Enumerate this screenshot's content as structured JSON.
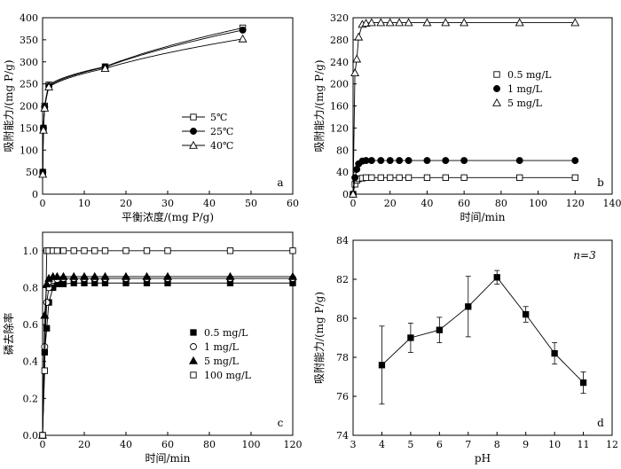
{
  "chart_data": [
    {
      "type": "scatter",
      "panel_label": "a",
      "xlabel": "平衡浓度/(mg P/g)",
      "ylabel": "吸附能力/(mg P/g)",
      "xlim": [
        0,
        60
      ],
      "ylim": [
        0,
        400
      ],
      "xticks": [
        0,
        10,
        20,
        30,
        40,
        50,
        60
      ],
      "yticks": [
        0,
        50,
        100,
        150,
        200,
        250,
        300,
        350,
        400
      ],
      "legend_position": "center-right",
      "fit_lines": true,
      "series": [
        {
          "name": "5℃",
          "marker": "open-square",
          "x": [
            0.05,
            0.2,
            0.5,
            1.5,
            15,
            48
          ],
          "y": [
            50,
            150,
            200,
            248,
            289,
            377
          ]
        },
        {
          "name": "25℃",
          "marker": "filled-circle",
          "x": [
            0.05,
            0.2,
            0.5,
            1.5,
            15,
            48
          ],
          "y": [
            50,
            150,
            198,
            245,
            288,
            372
          ]
        },
        {
          "name": "40℃",
          "marker": "open-triangle",
          "x": [
            0.05,
            0.2,
            0.5,
            1.5,
            15,
            48
          ],
          "y": [
            45,
            145,
            195,
            243,
            285,
            352
          ]
        }
      ]
    },
    {
      "type": "scatter",
      "panel_label": "b",
      "xlabel": "时间/min",
      "ylabel": "吸附能力/(mg P/g)",
      "xlim": [
        0,
        140
      ],
      "ylim": [
        0,
        320
      ],
      "xticks": [
        0,
        20,
        40,
        60,
        80,
        100,
        120,
        140
      ],
      "yticks": [
        0,
        40,
        80,
        120,
        160,
        200,
        240,
        280,
        320
      ],
      "legend_position": "center-right",
      "fit_lines": true,
      "series": [
        {
          "name": "0.5 mg/L",
          "marker": "open-square",
          "x": [
            0,
            1,
            2,
            3,
            5,
            7,
            10,
            15,
            20,
            25,
            30,
            40,
            50,
            60,
            90,
            120
          ],
          "y": [
            0,
            18,
            25,
            28,
            29,
            30,
            30,
            30,
            30,
            30,
            30,
            30,
            30,
            30,
            30,
            30
          ]
        },
        {
          "name": "1 mg/L",
          "marker": "filled-circle",
          "x": [
            0,
            1,
            2,
            3,
            5,
            7,
            10,
            15,
            20,
            25,
            30,
            40,
            50,
            60,
            90,
            120
          ],
          "y": [
            0,
            30,
            45,
            55,
            60,
            61,
            61,
            61,
            61,
            61,
            61,
            61,
            61,
            61,
            61,
            61
          ]
        },
        {
          "name": "5 mg/L",
          "marker": "open-triangle",
          "x": [
            0,
            1,
            2,
            3,
            5,
            7,
            10,
            15,
            20,
            25,
            30,
            40,
            50,
            60,
            90,
            120
          ],
          "y": [
            0,
            220,
            245,
            285,
            308,
            310,
            311,
            311,
            311,
            311,
            311,
            311,
            311,
            311,
            311,
            311
          ]
        }
      ]
    },
    {
      "type": "scatter",
      "panel_label": "c",
      "xlabel": "时间/min",
      "ylabel": "磷去除率",
      "xlim": [
        0,
        120
      ],
      "ylim": [
        0,
        1.1
      ],
      "xticks": [
        0,
        20,
        40,
        60,
        80,
        100,
        120
      ],
      "yticks": [
        0.0,
        0.2,
        0.4,
        0.6,
        0.8,
        1.0
      ],
      "ytick_labels": [
        "0.0",
        "0.2",
        "0.4",
        "0.6",
        "0.8",
        "1.0"
      ],
      "legend_position": "center-right",
      "fit_lines": true,
      "series": [
        {
          "name": "0.5 mg/L",
          "marker": "filled-square",
          "x": [
            0,
            1,
            2,
            3,
            5,
            7,
            10,
            15,
            20,
            25,
            30,
            40,
            50,
            60,
            90,
            120
          ],
          "y": [
            0,
            0.45,
            0.58,
            0.72,
            0.8,
            0.82,
            0.82,
            0.825,
            0.825,
            0.825,
            0.825,
            0.825,
            0.825,
            0.825,
            0.825,
            0.825
          ]
        },
        {
          "name": "1 mg/L",
          "marker": "open-circle",
          "x": [
            0,
            1,
            2,
            3,
            5,
            7,
            10,
            15,
            20,
            25,
            30,
            40,
            50,
            60,
            90,
            120
          ],
          "y": [
            0,
            0.48,
            0.72,
            0.8,
            0.84,
            0.845,
            0.85,
            0.85,
            0.85,
            0.85,
            0.85,
            0.85,
            0.85,
            0.85,
            0.85,
            0.85
          ]
        },
        {
          "name": "5 mg/L",
          "marker": "filled-triangle",
          "x": [
            0,
            1,
            2,
            3,
            5,
            7,
            10,
            15,
            20,
            25,
            30,
            40,
            50,
            60,
            90,
            120
          ],
          "y": [
            0,
            0.65,
            0.82,
            0.85,
            0.86,
            0.86,
            0.86,
            0.86,
            0.86,
            0.86,
            0.86,
            0.86,
            0.86,
            0.86,
            0.86,
            0.86
          ]
        },
        {
          "name": "100 mg/L",
          "marker": "open-square",
          "x": [
            0,
            1,
            2,
            3,
            5,
            7,
            10,
            15,
            20,
            25,
            30,
            40,
            50,
            60,
            90,
            120
          ],
          "y": [
            0,
            0.35,
            1.0,
            1.0,
            1.0,
            1.0,
            1.0,
            1.0,
            1.0,
            1.0,
            1.0,
            1.0,
            1.0,
            1.0,
            1.0,
            1.0
          ]
        }
      ]
    },
    {
      "type": "line",
      "panel_label": "d",
      "annotation": "n=3",
      "xlabel": "pH",
      "ylabel": "吸附能力/(mg P/g)",
      "xlim": [
        3,
        12
      ],
      "ylim": [
        74,
        84
      ],
      "xticks": [
        3,
        4,
        5,
        6,
        7,
        8,
        9,
        10,
        11,
        12
      ],
      "yticks": [
        74,
        76,
        78,
        80,
        82,
        84
      ],
      "series": [
        {
          "name": "",
          "marker": "filled-square",
          "x": [
            4,
            5,
            6,
            7,
            8,
            9,
            10,
            11
          ],
          "y": [
            77.6,
            79.0,
            79.4,
            80.6,
            82.1,
            80.2,
            78.2,
            76.7
          ],
          "error": [
            2.0,
            0.75,
            0.65,
            1.55,
            0.35,
            0.4,
            0.55,
            0.55
          ]
        }
      ]
    }
  ]
}
